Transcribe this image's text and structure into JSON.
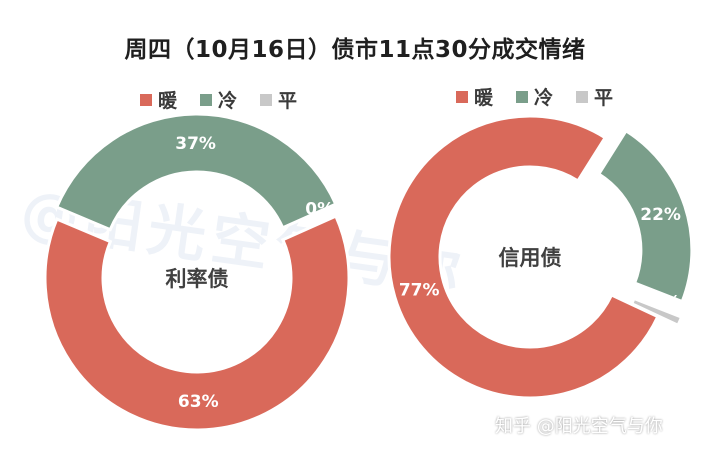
{
  "chart_title": "周四（10月16日）债市11点30分成交情绪",
  "watermark_background": "@阳光空气与你",
  "watermark_bottom": "知乎 @阳光空气与你",
  "colors": {
    "warm": "#d9695a",
    "cold": "#7a9e8a",
    "flat": "#c8c8c8",
    "legend_text": "#3a3a3a",
    "center_text": "#404040"
  },
  "chart_data": [
    {
      "type": "pie",
      "center_label": "利率债",
      "legend": [
        "暖",
        "冷",
        "平"
      ],
      "legend_position": "top",
      "slices": [
        {
          "name": "暖",
          "value": 63,
          "label": "63%"
        },
        {
          "name": "冷",
          "value": 37,
          "label": "37%"
        },
        {
          "name": "平",
          "value": 0,
          "label": "0%"
        }
      ]
    },
    {
      "type": "pie",
      "center_label": "信用债",
      "legend": [
        "暖",
        "冷",
        "平"
      ],
      "legend_position": "top",
      "slices": [
        {
          "name": "暖",
          "value": 77,
          "label": "77%"
        },
        {
          "name": "冷",
          "value": 22,
          "label": "22%"
        },
        {
          "name": "平",
          "value": 1,
          "label": "1%"
        }
      ]
    }
  ]
}
